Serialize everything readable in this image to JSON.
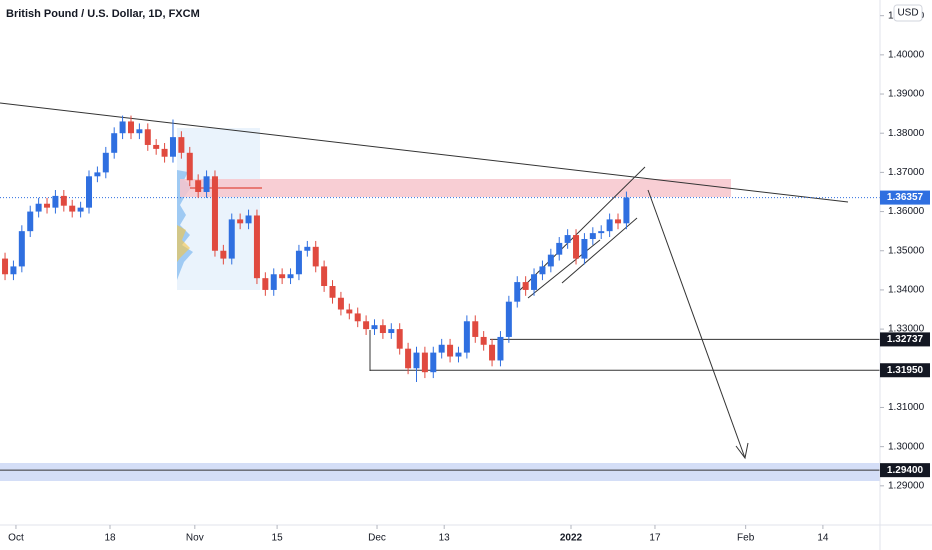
{
  "chart_data": {
    "type": "candlestick",
    "title": "British Pound / U.S. Dollar, 1D, FXCM",
    "currency": "USD",
    "up_color": "#2f6fe0",
    "down_color": "#e04a3f",
    "candles": {
      "open": [
        1.348,
        1.344,
        1.346,
        1.355,
        1.36,
        1.362,
        1.361,
        1.364,
        1.3615,
        1.36,
        1.361,
        1.369,
        1.37,
        1.375,
        1.38,
        1.383,
        1.38,
        1.381,
        1.377,
        1.376,
        1.374,
        1.379,
        1.375,
        1.368,
        1.365,
        1.369,
        1.35,
        1.348,
        1.358,
        1.357,
        1.359,
        1.343,
        1.34,
        1.344,
        1.343,
        1.344,
        1.35,
        1.351,
        1.346,
        1.341,
        1.338,
        1.335,
        1.334,
        1.332,
        1.33,
        1.331,
        1.329,
        1.33,
        1.325,
        1.32,
        1.324,
        1.319,
        1.324,
        1.326,
        1.323,
        1.324,
        1.332,
        1.328,
        1.326,
        1.322,
        1.328,
        1.337,
        1.342,
        1.34,
        1.344,
        1.346,
        1.349,
        1.352,
        1.354,
        1.348,
        1.353,
        1.3545,
        1.355,
        1.358,
        1.357
      ],
      "high": [
        1.3495,
        1.3475,
        1.3565,
        1.3615,
        1.3635,
        1.3635,
        1.3655,
        1.3655,
        1.363,
        1.3625,
        1.3705,
        1.3715,
        1.3765,
        1.3815,
        1.3845,
        1.3845,
        1.3825,
        1.3825,
        1.3785,
        1.3775,
        1.3835,
        1.3805,
        1.3765,
        1.3695,
        1.3705,
        1.3705,
        1.3515,
        1.3595,
        1.3595,
        1.3605,
        1.3605,
        1.3445,
        1.3455,
        1.3455,
        1.3455,
        1.3515,
        1.3525,
        1.3525,
        1.3475,
        1.3425,
        1.3395,
        1.3365,
        1.3355,
        1.3335,
        1.3325,
        1.3325,
        1.3315,
        1.3315,
        1.3265,
        1.3255,
        1.3255,
        1.3255,
        1.3275,
        1.3275,
        1.3255,
        1.3335,
        1.3335,
        1.3295,
        1.3275,
        1.3295,
        1.3385,
        1.3435,
        1.3435,
        1.3455,
        1.3475,
        1.3505,
        1.3535,
        1.3555,
        1.3555,
        1.3545,
        1.356,
        1.3565,
        1.3595,
        1.3595,
        1.3651
      ],
      "low": [
        1.3425,
        1.3425,
        1.3445,
        1.3535,
        1.3585,
        1.3595,
        1.3595,
        1.36,
        1.3585,
        1.3585,
        1.3595,
        1.3675,
        1.3685,
        1.3735,
        1.3785,
        1.3785,
        1.3785,
        1.3755,
        1.3745,
        1.3725,
        1.3725,
        1.3735,
        1.3665,
        1.3635,
        1.3635,
        1.3485,
        1.3465,
        1.3465,
        1.3555,
        1.3555,
        1.3415,
        1.3385,
        1.3385,
        1.3415,
        1.3415,
        1.3425,
        1.3485,
        1.3445,
        1.3395,
        1.3365,
        1.3335,
        1.3325,
        1.3305,
        1.3285,
        1.3285,
        1.3275,
        1.3275,
        1.3235,
        1.3185,
        1.3165,
        1.3175,
        1.3175,
        1.3225,
        1.3215,
        1.3215,
        1.3225,
        1.3265,
        1.3245,
        1.3205,
        1.3205,
        1.3265,
        1.3355,
        1.3385,
        1.3385,
        1.3425,
        1.3445,
        1.3475,
        1.3505,
        1.3465,
        1.3465,
        1.3515,
        1.353,
        1.3535,
        1.3555,
        1.3555
      ],
      "close": [
        1.344,
        1.346,
        1.355,
        1.36,
        1.362,
        1.361,
        1.364,
        1.3615,
        1.36,
        1.361,
        1.369,
        1.37,
        1.375,
        1.38,
        1.383,
        1.38,
        1.381,
        1.377,
        1.376,
        1.374,
        1.379,
        1.375,
        1.368,
        1.365,
        1.369,
        1.35,
        1.348,
        1.358,
        1.357,
        1.359,
        1.343,
        1.34,
        1.344,
        1.343,
        1.344,
        1.35,
        1.351,
        1.346,
        1.341,
        1.338,
        1.335,
        1.334,
        1.332,
        1.33,
        1.331,
        1.329,
        1.33,
        1.325,
        1.32,
        1.324,
        1.319,
        1.324,
        1.326,
        1.323,
        1.324,
        1.332,
        1.328,
        1.326,
        1.322,
        1.328,
        1.337,
        1.342,
        1.34,
        1.344,
        1.346,
        1.349,
        1.352,
        1.354,
        1.348,
        1.353,
        1.3545,
        1.355,
        1.358,
        1.357,
        1.3636
      ]
    },
    "xlim": [
      -0.6,
      104.2
    ],
    "xticks": [
      {
        "value": 1.3,
        "label": "Oct"
      },
      {
        "value": 12.5,
        "label": "18"
      },
      {
        "value": 22.6,
        "label": "Nov"
      },
      {
        "value": 32.4,
        "label": "15"
      },
      {
        "value": 44.3,
        "label": "Dec"
      },
      {
        "value": 52.3,
        "label": "13"
      },
      {
        "value": 67.4,
        "label": "2022"
      },
      {
        "value": 77.4,
        "label": "17"
      },
      {
        "value": 88.2,
        "label": "Feb"
      },
      {
        "value": 97.4,
        "label": "14"
      }
    ],
    "ylim": [
      1.28,
      1.414
    ],
    "yticks": [
      {
        "value": 1.41,
        "label": "1.41000"
      },
      {
        "value": 1.4,
        "label": "1.40000"
      },
      {
        "value": 1.39,
        "label": "1.39000"
      },
      {
        "value": 1.38,
        "label": "1.38000"
      },
      {
        "value": 1.37,
        "label": "1.37000"
      },
      {
        "value": 1.36,
        "label": "1.36000"
      },
      {
        "value": 1.35,
        "label": "1.35000"
      },
      {
        "value": 1.34,
        "label": "1.34000"
      },
      {
        "value": 1.33,
        "label": "1.33000"
      },
      {
        "value": 1.31,
        "label": "1.31000"
      },
      {
        "value": 1.3,
        "label": "1.30000"
      },
      {
        "value": 1.29,
        "label": "1.29000"
      }
    ],
    "current_price": {
      "value": 1.36357,
      "label": "1.36357"
    },
    "levels": [
      {
        "value": 1.32737,
        "label": "1.32737"
      },
      {
        "value": 1.3195,
        "label": "1.31950"
      },
      {
        "value": 1.294,
        "label": "1.29400"
      }
    ]
  }
}
